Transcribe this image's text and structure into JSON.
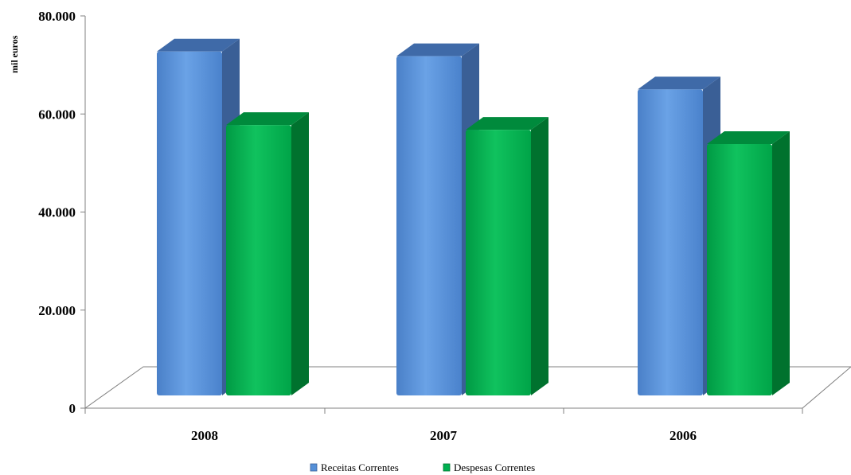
{
  "chart_data": {
    "type": "bar",
    "title": "",
    "ylabel": "mil euros",
    "xlabel": "",
    "categories": [
      "2008",
      "2007",
      "2006"
    ],
    "series": [
      {
        "name": "Receitas Correntes",
        "values": [
          72500,
          71500,
          64500
        ]
      },
      {
        "name": "Despesas Correntes",
        "values": [
          57000,
          56000,
          53000
        ]
      }
    ],
    "ylim": [
      0,
      80000
    ],
    "yticks": [
      "0",
      "20.000",
      "40.000",
      "60.000",
      "80.000"
    ],
    "legend": "bottom",
    "grid": false,
    "three_d": true
  },
  "colors": {
    "series": [
      {
        "front": "#5590D8",
        "side": "#3A5F96",
        "top": "#3F6AA8"
      },
      {
        "front": "#00B050",
        "side": "#00722E",
        "top": "#008A3C"
      }
    ],
    "axis": "#808080"
  }
}
